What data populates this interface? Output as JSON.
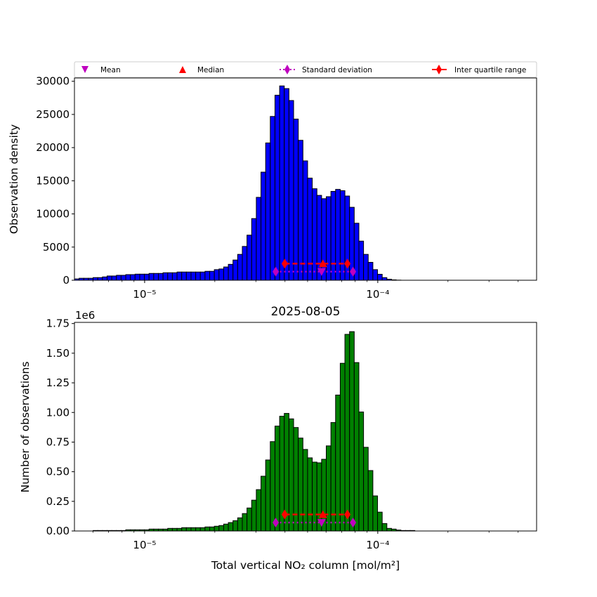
{
  "legend": {
    "mean": "Mean",
    "median": "Median",
    "std": "Standard deviation",
    "iqr": "Inter quartile range"
  },
  "colors": {
    "top_bars": "#0000ff",
    "bottom_bars": "#008000",
    "mean": "#bf00bf",
    "median": "#ff0000",
    "std": "#bf00bf",
    "iqr": "#ff0000"
  },
  "chart_data": [
    {
      "type": "bar",
      "title": "",
      "xlabel": "",
      "ylabel": "Observation density",
      "xscale": "log",
      "xlim": [
        5e-06,
        0.00048
      ],
      "ylim": [
        0,
        30500
      ],
      "xticks": [
        {
          "value": 1e-05,
          "label": "10⁻⁵"
        },
        {
          "value": 0.0001,
          "label": "10⁻⁴"
        }
      ],
      "yticks": [
        {
          "value": 0,
          "label": "0"
        },
        {
          "value": 5000,
          "label": "5000"
        },
        {
          "value": 10000,
          "label": "10000"
        },
        {
          "value": 15000,
          "label": "15000"
        },
        {
          "value": 20000,
          "label": "20000"
        },
        {
          "value": 25000,
          "label": "25000"
        },
        {
          "value": 30000,
          "label": "30000"
        }
      ],
      "bins": {
        "log10_start": -5.301,
        "log10_width": 0.02
      },
      "values": [
        200,
        300,
        300,
        300,
        400,
        400,
        500,
        640,
        640,
        745,
        745,
        850,
        850,
        920,
        920,
        920,
        1030,
        1030,
        1030,
        1130,
        1130,
        1130,
        1240,
        1240,
        1240,
        1240,
        1240,
        1240,
        1350,
        1350,
        1600,
        1700,
        2000,
        2400,
        3050,
        3900,
        5100,
        6800,
        9300,
        12500,
        16300,
        20700,
        24700,
        27900,
        29300,
        28900,
        27100,
        24300,
        21100,
        18000,
        15400,
        13800,
        12800,
        12300,
        12600,
        13400,
        13700,
        13500,
        12700,
        11000,
        8600,
        5900,
        3900,
        2700,
        1600,
        900,
        400,
        150,
        60,
        20
      ],
      "stats": {
        "mean": {
          "x": 5.74e-05,
          "y": 1300
        },
        "median": {
          "x": 5.82e-05,
          "y": 2500
        },
        "std": {
          "x": [
            3.65e-05,
            7.83e-05
          ],
          "y": 1300
        },
        "iqr": {
          "x": [
            3.99e-05,
            7.41e-05
          ],
          "y": 2500
        }
      },
      "legend_position": "above-top"
    },
    {
      "type": "bar",
      "title": "2025-08-05",
      "xlabel": "Total vertical NO₂ column [mol/m²]",
      "ylabel": "Number of observations",
      "offset_label": "1e6",
      "xscale": "log",
      "xlim": [
        5e-06,
        0.00048
      ],
      "ylim": [
        0,
        1760000
      ],
      "xticks": [
        {
          "value": 1e-05,
          "label": "10⁻⁵"
        },
        {
          "value": 0.0001,
          "label": "10⁻⁴"
        }
      ],
      "yticks": [
        {
          "value": 0,
          "label": "0.00"
        },
        {
          "value": 250000,
          "label": "0.25"
        },
        {
          "value": 500000,
          "label": "0.50"
        },
        {
          "value": 750000,
          "label": "0.75"
        },
        {
          "value": 1000000,
          "label": "1.00"
        },
        {
          "value": 1250000,
          "label": "1.25"
        },
        {
          "value": 1500000,
          "label": "1.50"
        },
        {
          "value": 1750000,
          "label": "1.75"
        }
      ],
      "bins": {
        "log10_start": -5.301,
        "log10_width": 0.02
      },
      "values": [
        0,
        0,
        0,
        0,
        4000,
        4000,
        4000,
        4000,
        4000,
        4000,
        4000,
        10000,
        10000,
        10000,
        10000,
        10000,
        16000,
        16000,
        16000,
        16000,
        22000,
        22000,
        22000,
        28000,
        28000,
        28000,
        28000,
        28000,
        34000,
        34000,
        40000,
        46000,
        58000,
        71000,
        87000,
        111000,
        147000,
        194000,
        260000,
        349000,
        462000,
        599000,
        754000,
        885000,
        968000,
        992000,
        946000,
        873000,
        784000,
        688000,
        617000,
        581000,
        575000,
        605000,
        718000,
        915000,
        1147000,
        1415000,
        1659000,
        1682000,
        1421000,
        1004000,
        706000,
        510000,
        296000,
        159000,
        63000,
        22000,
        16000,
        8000,
        4000,
        4000,
        4000
      ],
      "stats": {
        "mean": {
          "x": 5.74e-05,
          "y": 71000
        },
        "median": {
          "x": 5.82e-05,
          "y": 139000
        },
        "std": {
          "x": [
            3.65e-05,
            7.83e-05
          ],
          "y": 71000
        },
        "iqr": {
          "x": [
            3.99e-05,
            7.41e-05
          ],
          "y": 139000
        }
      }
    }
  ]
}
